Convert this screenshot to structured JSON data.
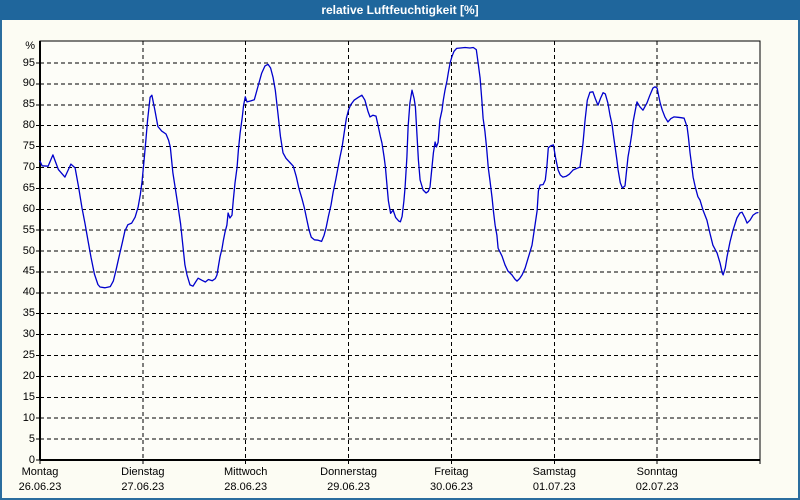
{
  "title": "relative Luftfeuchtigkeit [%]",
  "colors": {
    "titlebar": "#1f669c",
    "window_border": "#2b6d9e",
    "window_bg": "#fcfcf3",
    "plot_bg": "#fdfdf8",
    "grid": "#000000",
    "line": "#0000cc",
    "title_text": "#ffffff"
  },
  "chart_data": {
    "type": "line",
    "title": "relative Luftfeuchtigkeit [%]",
    "ylabel": "%",
    "xlabel": "",
    "y_unit": "%",
    "ylim": [
      0,
      100.3
    ],
    "y_ticks": [
      0,
      5,
      10,
      15,
      20,
      25,
      30,
      35,
      40,
      45,
      50,
      55,
      60,
      65,
      70,
      75,
      80,
      85,
      90,
      95
    ],
    "x_range_hours": [
      0,
      168
    ],
    "grid": "dashed",
    "legend": "none",
    "days": [
      {
        "label": "Montag",
        "date": "26.06.23"
      },
      {
        "label": "Dienstag",
        "date": "27.06.23"
      },
      {
        "label": "Mittwoch",
        "date": "28.06.23"
      },
      {
        "label": "Donnerstag",
        "date": "29.06.23"
      },
      {
        "label": "Freitag",
        "date": "30.06.23"
      },
      {
        "label": "Samstag",
        "date": "01.07.23"
      },
      {
        "label": "Sonntag",
        "date": "02.07.23"
      }
    ],
    "series": [
      {
        "name": "relative Luftfeuchtigkeit",
        "points": [
          [
            0,
            71.5
          ],
          [
            0.5,
            70.4
          ],
          [
            1.9,
            70.3
          ],
          [
            3,
            73
          ],
          [
            4.3,
            69.5
          ],
          [
            5.8,
            67.7
          ],
          [
            7.2,
            70.8
          ],
          [
            8.2,
            69.9
          ],
          [
            9,
            65.3
          ],
          [
            9.8,
            60.3
          ],
          [
            10.5,
            56.6
          ],
          [
            11.2,
            52.5
          ],
          [
            11.9,
            48.5
          ],
          [
            12.7,
            44.5
          ],
          [
            13.5,
            42
          ],
          [
            14,
            41.4
          ],
          [
            15.2,
            41.2
          ],
          [
            16.4,
            41.5
          ],
          [
            17.1,
            42.8
          ],
          [
            17.7,
            45.3
          ],
          [
            18.4,
            48.5
          ],
          [
            19.2,
            52
          ],
          [
            19.8,
            54.8
          ],
          [
            20.5,
            56.3
          ],
          [
            21.4,
            56.7
          ],
          [
            22.2,
            58.1
          ],
          [
            22.9,
            60.5
          ],
          [
            23.4,
            63.5
          ],
          [
            23.8,
            66.5
          ],
          [
            24.3,
            71.8
          ],
          [
            24.7,
            76.6
          ],
          [
            25.1,
            81.4
          ],
          [
            25.7,
            86.8
          ],
          [
            26.1,
            87.3
          ],
          [
            26.8,
            83.7
          ],
          [
            27.5,
            79.8
          ],
          [
            28.4,
            78.7
          ],
          [
            29.4,
            78
          ],
          [
            30,
            76.5
          ],
          [
            30.4,
            74.9
          ],
          [
            31,
            68.7
          ],
          [
            32,
            62.2
          ],
          [
            32.8,
            56.5
          ],
          [
            33.2,
            52.6
          ],
          [
            33.8,
            46.7
          ],
          [
            34.3,
            44.3
          ],
          [
            35,
            41.9
          ],
          [
            35.7,
            41.6
          ],
          [
            36.3,
            42.6
          ],
          [
            36.9,
            43.5
          ],
          [
            37.8,
            43
          ],
          [
            38.6,
            42.6
          ],
          [
            39.3,
            43.2
          ],
          [
            40.2,
            42.9
          ],
          [
            40.9,
            43.4
          ],
          [
            41.3,
            44.3
          ],
          [
            41.6,
            46.2
          ],
          [
            42,
            48.6
          ],
          [
            42.5,
            50.7
          ],
          [
            42.8,
            52.6
          ],
          [
            43.2,
            54.6
          ],
          [
            43.6,
            56.2
          ],
          [
            43.9,
            59.1
          ],
          [
            44.3,
            57.9
          ],
          [
            44.8,
            58.6
          ],
          [
            45.1,
            62.2
          ],
          [
            45.5,
            66.3
          ],
          [
            46,
            70.1
          ],
          [
            46.3,
            74.2
          ],
          [
            46.7,
            78.2
          ],
          [
            47.2,
            82.1
          ],
          [
            47.5,
            84.9
          ],
          [
            47.9,
            86.9
          ],
          [
            48.3,
            85.7
          ],
          [
            49.1,
            85.9
          ],
          [
            50,
            86.2
          ],
          [
            50.9,
            89.5
          ],
          [
            51.7,
            92.5
          ],
          [
            52.5,
            94.3
          ],
          [
            53.2,
            94.7
          ],
          [
            53.8,
            93.8
          ],
          [
            54.4,
            91.5
          ],
          [
            54.9,
            88.5
          ],
          [
            55.5,
            83
          ],
          [
            56.1,
            77.5
          ],
          [
            56.7,
            73.5
          ],
          [
            57.4,
            72.2
          ],
          [
            58.3,
            71.2
          ],
          [
            59.1,
            70.3
          ],
          [
            59.8,
            67.8
          ],
          [
            60.4,
            65
          ],
          [
            61.1,
            62.6
          ],
          [
            61.7,
            60.3
          ],
          [
            62.3,
            57.3
          ],
          [
            62.8,
            55
          ],
          [
            63.3,
            53.3
          ],
          [
            64,
            52.7
          ],
          [
            64.9,
            52.6
          ],
          [
            65.7,
            52.3
          ],
          [
            66.3,
            53.8
          ],
          [
            66.8,
            55.8
          ],
          [
            67.3,
            58.3
          ],
          [
            67.9,
            61
          ],
          [
            68.4,
            64
          ],
          [
            69,
            67
          ],
          [
            69.5,
            69.8
          ],
          [
            70,
            72.5
          ],
          [
            70.5,
            74.9
          ],
          [
            71,
            78.5
          ],
          [
            71.5,
            81.8
          ],
          [
            72,
            83.8
          ],
          [
            72.5,
            85
          ],
          [
            73.3,
            86.1
          ],
          [
            74.3,
            86.8
          ],
          [
            75.1,
            87.3
          ],
          [
            75.8,
            86.1
          ],
          [
            76.5,
            83.5
          ],
          [
            77,
            82.1
          ],
          [
            77.7,
            82.5
          ],
          [
            78.4,
            82.3
          ],
          [
            78.9,
            80
          ],
          [
            79.4,
            77.5
          ],
          [
            79.8,
            75.8
          ],
          [
            80.3,
            72.5
          ],
          [
            80.6,
            70.1
          ],
          [
            80.9,
            66.5
          ],
          [
            81.3,
            62
          ],
          [
            81.8,
            59
          ],
          [
            82.4,
            59.8
          ],
          [
            83,
            58
          ],
          [
            83.7,
            57.2
          ],
          [
            84.1,
            57
          ],
          [
            84.5,
            58.3
          ],
          [
            84.9,
            62
          ],
          [
            85.2,
            65.3
          ],
          [
            85.6,
            72.5
          ],
          [
            85.9,
            79.7
          ],
          [
            86.3,
            85.4
          ],
          [
            86.8,
            88.5
          ],
          [
            87.3,
            86.5
          ],
          [
            87.6,
            84.5
          ],
          [
            88,
            77.3
          ],
          [
            88.3,
            71.8
          ],
          [
            88.7,
            67
          ],
          [
            89.4,
            64.6
          ],
          [
            90.1,
            63.9
          ],
          [
            90.6,
            64.3
          ],
          [
            91,
            65.3
          ],
          [
            91.4,
            69.4
          ],
          [
            91.8,
            73.5
          ],
          [
            92.2,
            76.1
          ],
          [
            92.5,
            74.9
          ],
          [
            92.9,
            76
          ],
          [
            93.3,
            81.4
          ],
          [
            93.8,
            83.7
          ],
          [
            94.1,
            86.1
          ],
          [
            94.5,
            88.5
          ],
          [
            95,
            90.9
          ],
          [
            95.3,
            92.8
          ],
          [
            95.7,
            95
          ],
          [
            96.1,
            96.5
          ],
          [
            96.6,
            97.8
          ],
          [
            97.2,
            98.5
          ],
          [
            98.1,
            98.6
          ],
          [
            99.2,
            98.7
          ],
          [
            100.3,
            98.6
          ],
          [
            101.1,
            98.7
          ],
          [
            101.8,
            98.2
          ],
          [
            102.3,
            94.5
          ],
          [
            102.7,
            91.4
          ],
          [
            103.1,
            85.9
          ],
          [
            103.4,
            81.8
          ],
          [
            103.8,
            78.7
          ],
          [
            104.2,
            74.7
          ],
          [
            104.6,
            69.9
          ],
          [
            105,
            66.8
          ],
          [
            105.5,
            62.7
          ],
          [
            105.8,
            59.6
          ],
          [
            106.2,
            56.2
          ],
          [
            106.6,
            53.8
          ],
          [
            106.9,
            50.7
          ],
          [
            107.8,
            48.8
          ],
          [
            108.5,
            46.7
          ],
          [
            109.2,
            45.2
          ],
          [
            110.1,
            44.3
          ],
          [
            110.8,
            43.3
          ],
          [
            111.3,
            42.8
          ],
          [
            111.9,
            43.4
          ],
          [
            112.5,
            44.3
          ],
          [
            113.2,
            45.9
          ],
          [
            113.9,
            48.3
          ],
          [
            114.8,
            51.4
          ],
          [
            115.5,
            56.2
          ],
          [
            116,
            59.6
          ],
          [
            116.3,
            64.4
          ],
          [
            116.7,
            65.8
          ],
          [
            117.4,
            65.9
          ],
          [
            117.9,
            67
          ],
          [
            118.3,
            70.6
          ],
          [
            118.6,
            74.7
          ],
          [
            119.2,
            75.2
          ],
          [
            119.8,
            75.4
          ],
          [
            120.3,
            72.3
          ],
          [
            120.9,
            69.4
          ],
          [
            121.4,
            68.2
          ],
          [
            122,
            67.7
          ],
          [
            122.8,
            67.9
          ],
          [
            123.5,
            68.4
          ],
          [
            124.4,
            69.4
          ],
          [
            125.3,
            69.8
          ],
          [
            126,
            70.1
          ],
          [
            126.7,
            75.8
          ],
          [
            127.2,
            81.4
          ],
          [
            127.7,
            86.1
          ],
          [
            128.3,
            88
          ],
          [
            129,
            88.1
          ],
          [
            129.6,
            86.4
          ],
          [
            130.2,
            84.9
          ],
          [
            130.8,
            86.6
          ],
          [
            131.4,
            87.9
          ],
          [
            131.9,
            87.6
          ],
          [
            132.5,
            85.4
          ],
          [
            133,
            82.5
          ],
          [
            133.5,
            80.2
          ],
          [
            133.8,
            77.8
          ],
          [
            134.2,
            74.9
          ],
          [
            134.6,
            71.8
          ],
          [
            134.9,
            69.4
          ],
          [
            135.4,
            66.3
          ],
          [
            135.9,
            65.1
          ],
          [
            136.5,
            65.6
          ],
          [
            137.2,
            72.5
          ],
          [
            137.7,
            75.4
          ],
          [
            138.1,
            78.2
          ],
          [
            138.4,
            80.9
          ],
          [
            138.9,
            83.7
          ],
          [
            139.3,
            85.7
          ],
          [
            140,
            84.5
          ],
          [
            140.7,
            83.7
          ],
          [
            141.6,
            85.4
          ],
          [
            142.3,
            87.3
          ],
          [
            143,
            89
          ],
          [
            143.5,
            89.3
          ],
          [
            144,
            89
          ],
          [
            144.7,
            85.5
          ],
          [
            145.2,
            83.7
          ],
          [
            145.8,
            82.1
          ],
          [
            146.5,
            80.9
          ],
          [
            147.2,
            81.7
          ],
          [
            147.9,
            82.1
          ],
          [
            148.9,
            82
          ],
          [
            149.6,
            81.9
          ],
          [
            150.3,
            81.8
          ],
          [
            151,
            79.7
          ],
          [
            151.3,
            77.3
          ],
          [
            151.7,
            73.4
          ],
          [
            152.1,
            70.1
          ],
          [
            152.4,
            67.7
          ],
          [
            152.9,
            65.3
          ],
          [
            153.5,
            63
          ],
          [
            154,
            62.2
          ],
          [
            154.7,
            59.8
          ],
          [
            155.6,
            57.4
          ],
          [
            156.3,
            54.3
          ],
          [
            157,
            51.4
          ],
          [
            158,
            49.5
          ],
          [
            158.7,
            47.1
          ],
          [
            159.2,
            44.7
          ],
          [
            159.4,
            44.3
          ],
          [
            159.9,
            46
          ],
          [
            160.3,
            48.6
          ],
          [
            161,
            52.2
          ],
          [
            161.7,
            55
          ],
          [
            162.6,
            57.9
          ],
          [
            163.3,
            59.1
          ],
          [
            163.8,
            59.3
          ],
          [
            164.5,
            57.9
          ],
          [
            165,
            56.7
          ],
          [
            165.7,
            57.4
          ],
          [
            166.4,
            58.6
          ],
          [
            167.1,
            59.1
          ],
          [
            167.5,
            59.2
          ]
        ]
      }
    ]
  }
}
